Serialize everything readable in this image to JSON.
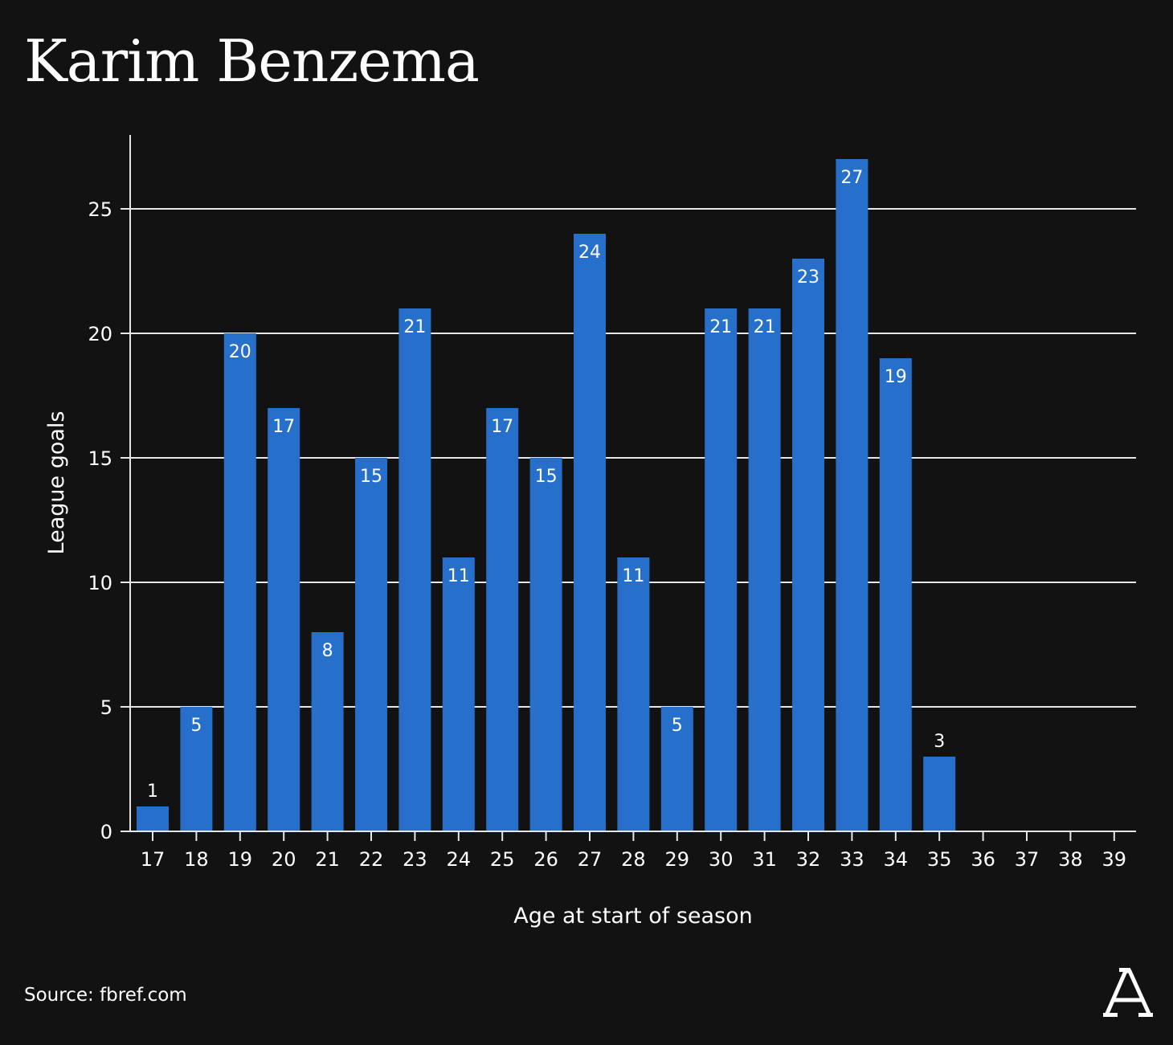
{
  "title": "Karim Benzema",
  "source": "Source: fbref.com",
  "logo": {
    "letter": "A",
    "color": "#ffffff"
  },
  "colors": {
    "background": "#121212",
    "bar": "#2670cc",
    "grid": "#e6e6e6",
    "text": "#ffffff"
  },
  "chart_data": {
    "type": "bar",
    "xlabel": "Age at start of season",
    "ylabel": "League goals",
    "categories": [
      "17",
      "18",
      "19",
      "20",
      "21",
      "22",
      "23",
      "24",
      "25",
      "26",
      "27",
      "28",
      "29",
      "30",
      "31",
      "32",
      "33",
      "34",
      "35",
      "36",
      "37",
      "38",
      "39"
    ],
    "values": [
      1,
      5,
      20,
      17,
      8,
      15,
      21,
      11,
      17,
      15,
      24,
      11,
      5,
      21,
      21,
      23,
      27,
      19,
      3,
      0,
      0,
      0,
      0
    ],
    "value_labels": [
      "1",
      "5",
      "20",
      "17",
      "8",
      "15",
      "21",
      "11",
      "17",
      "15",
      "24",
      "11",
      "5",
      "21",
      "21",
      "23",
      "27",
      "19",
      "3",
      "",
      "",
      "",
      ""
    ],
    "ylim": [
      0,
      28
    ],
    "yticks": [
      0,
      5,
      10,
      15,
      20,
      25
    ],
    "grid": true,
    "legend": false
  }
}
